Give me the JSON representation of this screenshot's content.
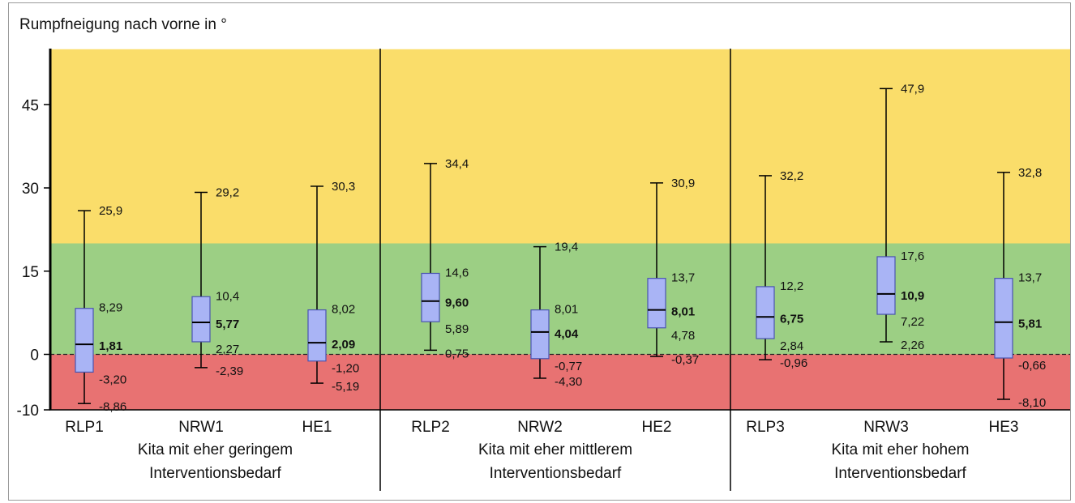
{
  "chart_data": {
    "type": "boxplot",
    "title": "",
    "ylabel": "Rumpfneigung nach vorne in °",
    "ylim": [
      -10,
      55
    ],
    "yticks": [
      -10,
      0,
      15,
      30,
      45
    ],
    "bands": [
      {
        "from": -10,
        "to": 0,
        "color": "#e87272"
      },
      {
        "from": 0,
        "to": 20,
        "color": "#9ccf84"
      },
      {
        "from": 20,
        "to": 55,
        "color": "#fadd6a"
      }
    ],
    "box_color": "#a9b4f5",
    "box_stroke": "#4a54b0",
    "groups": [
      {
        "label_line1": "Kita mit eher geringem",
        "label_line2": "Interventionsbedarf"
      },
      {
        "label_line1": "Kita mit eher mittlerem",
        "label_line2": "Interventionsbedarf"
      },
      {
        "label_line1": "Kita mit eher hohem",
        "label_line2": "Interventionsbedarf"
      }
    ],
    "boxes": [
      {
        "name": "RLP1",
        "group": 0,
        "min": -8.86,
        "q1": -3.2,
        "median": 1.81,
        "q3": 8.29,
        "max": 25.9,
        "min_label": "-8,86",
        "q1_label": "-3,20",
        "median_label": "1,81",
        "q3_label": "8,29",
        "max_label": "25,9"
      },
      {
        "name": "NRW1",
        "group": 0,
        "min": -2.39,
        "q1": 2.27,
        "median": 5.77,
        "q3": 10.4,
        "max": 29.2,
        "min_label": "-2,39",
        "q1_label": "2,27",
        "median_label": "5,77",
        "q3_label": "10,4",
        "max_label": "29,2"
      },
      {
        "name": "HE1",
        "group": 0,
        "min": -5.19,
        "q1": -1.2,
        "median": 2.09,
        "q3": 8.02,
        "max": 30.3,
        "min_label": "-5,19",
        "q1_label": "-1,20",
        "median_label": "2,09",
        "q3_label": "8,02",
        "max_label": "30,3"
      },
      {
        "name": "RLP2",
        "group": 1,
        "min": 0.75,
        "q1": 5.89,
        "median": 9.6,
        "q3": 14.6,
        "max": 34.4,
        "min_label": "0,75",
        "q1_label": "5,89",
        "median_label": "9,60",
        "q3_label": "14,6",
        "max_label": "34,4"
      },
      {
        "name": "NRW2",
        "group": 1,
        "min": -4.3,
        "q1": -0.77,
        "median": 4.04,
        "q3": 8.01,
        "max": 19.4,
        "min_label": "-4,30",
        "q1_label": "-0,77",
        "median_label": "4,04",
        "q3_label": "8,01",
        "max_label": "19,4"
      },
      {
        "name": "HE2",
        "group": 1,
        "min": -0.37,
        "q1": 4.78,
        "median": 8.01,
        "q3": 13.7,
        "max": 30.9,
        "min_label": "-0,37",
        "q1_label": "4,78",
        "median_label": "8,01",
        "q3_label": "13,7",
        "max_label": "30,9"
      },
      {
        "name": "RLP3",
        "group": 2,
        "min": -0.96,
        "q1": 2.84,
        "median": 6.75,
        "q3": 12.2,
        "max": 32.2,
        "min_label": "-0,96",
        "q1_label": "2,84",
        "median_label": "6,75",
        "q3_label": "12,2",
        "max_label": "32,2"
      },
      {
        "name": "NRW3",
        "group": 2,
        "min": 2.26,
        "q1": 7.22,
        "median": 10.9,
        "q3": 17.6,
        "max": 47.9,
        "min_label": "2,26",
        "q1_label": "7,22",
        "median_label": "10,9",
        "q3_label": "17,6",
        "max_label": "47,9"
      },
      {
        "name": "HE3",
        "group": 2,
        "min": -8.1,
        "q1": -0.66,
        "median": 5.81,
        "q3": 13.7,
        "max": 32.8,
        "min_label": "-8,10",
        "q1_label": "-0,66",
        "median_label": "5,81",
        "q3_label": "13,7",
        "max_label": "32,8"
      }
    ]
  }
}
